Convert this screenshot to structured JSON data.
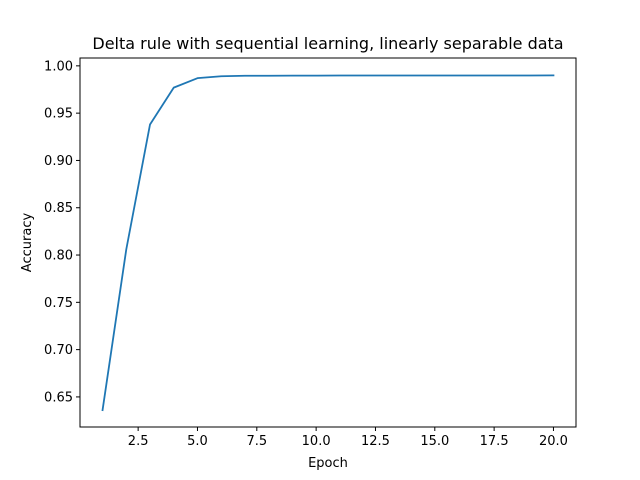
{
  "chart_data": {
    "type": "line",
    "title": "Delta rule with sequential learning, linearly separable data",
    "xlabel": "Epoch",
    "ylabel": "Accuracy",
    "xlim": [
      0.05,
      20.95
    ],
    "ylim": [
      0.6182,
      1.0083
    ],
    "xticks": [
      2.5,
      5.0,
      7.5,
      10.0,
      12.5,
      15.0,
      17.5,
      20.0
    ],
    "xtick_labels": [
      "2.5",
      "5.0",
      "7.5",
      "10.0",
      "12.5",
      "15.0",
      "17.5",
      "20.0"
    ],
    "yticks": [
      0.65,
      0.7,
      0.75,
      0.8,
      0.85,
      0.9,
      0.95,
      1.0
    ],
    "ytick_labels": [
      "0.65",
      "0.70",
      "0.75",
      "0.80",
      "0.85",
      "0.90",
      "0.95",
      "1.00"
    ],
    "grid": false,
    "series": [
      {
        "color": "#1f77b4",
        "x": [
          1,
          2,
          3,
          4,
          5,
          6,
          7,
          8,
          9,
          10,
          11,
          12,
          13,
          14,
          15,
          16,
          17,
          18,
          19,
          20
        ],
        "y": [
          0.636,
          0.806,
          0.938,
          0.977,
          0.987,
          0.989,
          0.9895,
          0.9895,
          0.9897,
          0.9897,
          0.9898,
          0.9898,
          0.9898,
          0.9898,
          0.9898,
          0.9898,
          0.9898,
          0.9898,
          0.9898,
          0.9899
        ]
      }
    ]
  }
}
